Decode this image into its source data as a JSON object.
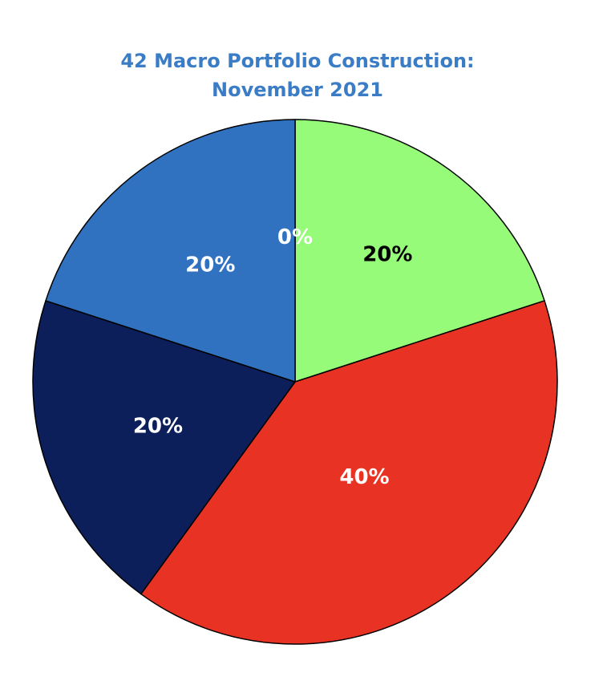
{
  "chart_data": {
    "type": "pie",
    "title": [
      "42 Macro Portfolio Construction:",
      "November 2021"
    ],
    "slices": [
      {
        "value": 20,
        "label": "20%",
        "color": "#96fb78",
        "label_color": "#000000"
      },
      {
        "value": 40,
        "label": "40%",
        "color": "#e83324",
        "label_color": "#ffffff"
      },
      {
        "value": 20,
        "label": "20%",
        "color": "#0c1f5a",
        "label_color": "#ffffff"
      },
      {
        "value": 20,
        "label": "20%",
        "color": "#3172c0",
        "label_color": "#ffffff"
      },
      {
        "value": 0,
        "label": "0%",
        "color": "#3172c0",
        "label_color": "#ffffff"
      }
    ],
    "start_angle": "12 o'clock",
    "direction": "clockwise",
    "legend": "none"
  }
}
